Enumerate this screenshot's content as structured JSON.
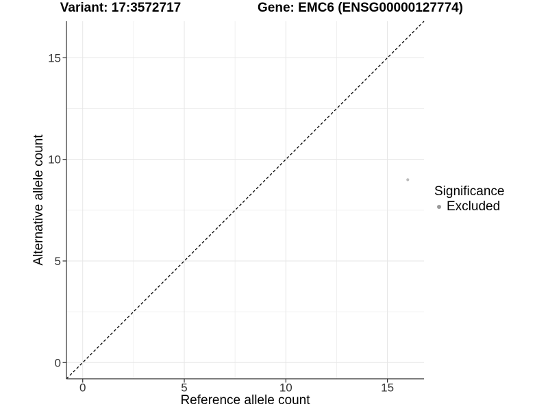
{
  "header": {
    "variant_title": "Variant: 17:3572717",
    "gene_title": "Gene: EMC6 (ENSG00000127774)"
  },
  "axes": {
    "x_label": "Reference allele count",
    "y_label": "Alternative allele count"
  },
  "legend": {
    "title": "Significance",
    "items": [
      {
        "label": "Excluded",
        "color": "#999999"
      }
    ]
  },
  "colors": {
    "point": "#bcbcbc",
    "axis_line": "#2f2f2f",
    "tick_label": "#333333",
    "grid_major": "#e6e6e6",
    "grid_minor": "#f0f0f0",
    "reference_line": "#000000",
    "background": "#ffffff"
  },
  "chart_data": {
    "type": "scatter",
    "title": "Variant: 17:3572717   Gene: EMC6 (ENSG00000127774)",
    "xlabel": "Reference allele count",
    "ylabel": "Alternative allele count",
    "xlim": [
      -0.8,
      16.8
    ],
    "ylim": [
      -0.8,
      16.8
    ],
    "x_ticks": [
      0,
      5,
      10,
      15
    ],
    "y_ticks": [
      0,
      5,
      10,
      15
    ],
    "x_minor_ticks": [
      2.5,
      7.5,
      12.5
    ],
    "y_minor_ticks": [
      2.5,
      7.5,
      12.5
    ],
    "grid": true,
    "legend_position": "right",
    "series": [
      {
        "name": "Excluded",
        "color": "#bcbcbc",
        "points": [
          {
            "x": 16,
            "y": 9
          }
        ]
      }
    ],
    "reference_line": {
      "equation": "y = x",
      "style": "dashed",
      "color": "#000000"
    }
  }
}
